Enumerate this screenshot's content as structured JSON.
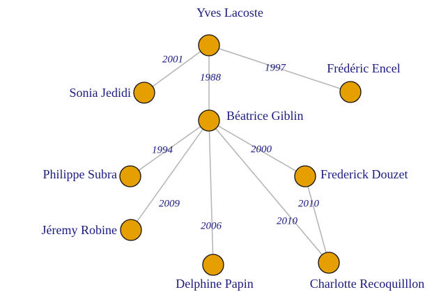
{
  "nodes": [
    {
      "label": "Yves Lacoste"
    },
    {
      "label": "Sonia Jedidi"
    },
    {
      "label": "Frédéric Encel"
    },
    {
      "label": "Béatrice Giblin"
    },
    {
      "label": "Philippe Subra"
    },
    {
      "label": "Frederick Douzet"
    },
    {
      "label": "Jéremy Robine"
    },
    {
      "label": "Delphine Papin"
    },
    {
      "label": "Charlotte Recoquilllon"
    }
  ],
  "edges": [
    {
      "label": "2001"
    },
    {
      "label": "1997"
    },
    {
      "label": "1988"
    },
    {
      "label": "1994"
    },
    {
      "label": "2000"
    },
    {
      "label": "2009"
    },
    {
      "label": "2006"
    },
    {
      "label": "2010"
    },
    {
      "label": "2010"
    }
  ]
}
